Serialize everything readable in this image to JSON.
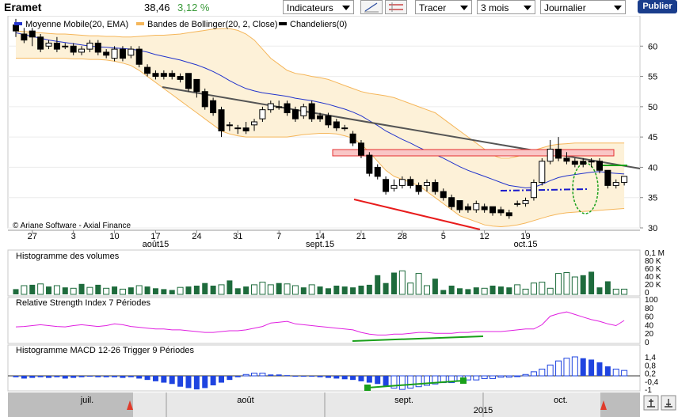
{
  "header": {
    "title": "Eramet",
    "price": "38,46",
    "change": "3,12 %",
    "indicators_label": "Indicateurs",
    "draw_label": "Tracer",
    "period_label": "3 mois",
    "interval_label": "Journalier",
    "publish_label": "Publier"
  },
  "legend": {
    "ema": "Moyenne Mobile(20, EMA)",
    "bollinger": "Bandes de Bollinger(20, 2, Close)",
    "candles": "Chandeliers(0)"
  },
  "colors": {
    "up": "#ffffff",
    "down": "#000000",
    "volume_up": "#1e6b3c",
    "ema": "#2233cc",
    "bollinger": "#f5b65a",
    "rsi": "#e020e0",
    "macd": "#1f44e0",
    "trend_red": "#e81c1c",
    "trend_green": "#1aa01a",
    "resistance_fill": "#f9c6c6"
  },
  "credit": "© Ariane Software - Axial Finance",
  "panels": {
    "volume_title": "Histogramme des volumes",
    "rsi_title": "Relative Strength Index 7 Périodes",
    "macd_title": "Histogramme MACD 12-26   Trigger 9 Périodes"
  },
  "x_ticks": [
    "27",
    "3",
    "10",
    "17",
    "24",
    "31",
    "7",
    "14",
    "21",
    "28",
    "5",
    "12",
    "19"
  ],
  "month_labels": [
    "août15",
    "sept.15",
    "oct.15"
  ],
  "nav": {
    "months": [
      "juil.",
      "août",
      "sept.",
      "oct."
    ],
    "year": "2015"
  },
  "chart_data": [
    {
      "type": "candlestick",
      "title": "Eramet",
      "ylim": [
        30,
        65
      ],
      "yticks": [
        30,
        35,
        40,
        45,
        50,
        55,
        60
      ],
      "candles": [
        [
          63.5,
          62.5,
          64.5,
          61.5
        ],
        [
          62.0,
          61.0,
          63.0,
          60.5
        ],
        [
          62.5,
          61.5,
          63.0,
          60.0
        ],
        [
          61.5,
          59.5,
          62.0,
          59.0
        ],
        [
          60.0,
          60.5,
          61.0,
          59.5
        ],
        [
          60.5,
          59.5,
          61.5,
          59.0
        ],
        [
          60.0,
          60.0,
          60.5,
          59.5
        ],
        [
          60.0,
          59.0,
          60.5,
          58.5
        ],
        [
          59.0,
          59.5,
          60.0,
          58.5
        ],
        [
          59.5,
          60.5,
          61.0,
          59.0
        ],
        [
          60.5,
          59.0,
          61.0,
          58.5
        ],
        [
          59.0,
          58.5,
          59.5,
          58.0
        ],
        [
          58.0,
          59.5,
          60.0,
          57.5
        ],
        [
          59.5,
          58.0,
          60.0,
          57.5
        ],
        [
          58.5,
          59.5,
          60.0,
          58.0
        ],
        [
          59.5,
          57.0,
          60.0,
          56.5
        ],
        [
          56.5,
          55.5,
          57.0,
          55.0
        ],
        [
          55.5,
          55.0,
          56.0,
          54.5
        ],
        [
          55.5,
          55.0,
          56.0,
          54.5
        ],
        [
          55.5,
          55.0,
          56.0,
          54.5
        ],
        [
          55.0,
          54.5,
          55.5,
          54.0
        ],
        [
          55.5,
          53.0,
          55.5,
          52.5
        ],
        [
          54.5,
          52.5,
          54.5,
          51.5
        ],
        [
          52.5,
          50.0,
          53.0,
          49.5
        ],
        [
          51.0,
          49.0,
          51.5,
          48.5
        ],
        [
          49.5,
          46.0,
          50.0,
          45.0
        ],
        [
          47.0,
          47.0,
          47.5,
          46.0
        ],
        [
          46.5,
          46.5,
          47.0,
          45.5
        ],
        [
          46.5,
          46.0,
          47.5,
          45.5
        ],
        [
          47.0,
          47.5,
          48.0,
          46.0
        ],
        [
          48.0,
          49.5,
          50.0,
          47.5
        ],
        [
          49.5,
          50.5,
          51.0,
          49.0
        ],
        [
          50.0,
          50.0,
          51.0,
          49.5
        ],
        [
          50.5,
          49.0,
          51.0,
          48.5
        ],
        [
          49.5,
          48.0,
          50.0,
          47.5
        ],
        [
          48.5,
          50.0,
          50.5,
          48.0
        ],
        [
          50.5,
          48.0,
          51.0,
          47.5
        ],
        [
          48.5,
          48.0,
          49.0,
          47.5
        ],
        [
          48.5,
          47.0,
          49.0,
          46.5
        ],
        [
          47.5,
          46.5,
          48.0,
          46.0
        ],
        [
          46.5,
          46.5,
          47.0,
          46.0
        ],
        [
          45.5,
          44.0,
          46.0,
          43.5
        ],
        [
          44.0,
          42.0,
          44.5,
          41.5
        ],
        [
          42.0,
          39.0,
          42.5,
          38.5
        ],
        [
          40.0,
          38.5,
          40.5,
          38.0
        ],
        [
          38.0,
          36.0,
          38.5,
          35.5
        ],
        [
          36.5,
          37.0,
          38.0,
          36.0
        ],
        [
          37.0,
          38.0,
          38.5,
          36.5
        ],
        [
          38.0,
          37.0,
          38.5,
          36.5
        ],
        [
          37.0,
          36.0,
          37.5,
          35.5
        ],
        [
          37.0,
          37.5,
          38.0,
          36.0
        ],
        [
          37.5,
          36.0,
          38.0,
          35.5
        ],
        [
          36.0,
          35.0,
          36.5,
          34.5
        ],
        [
          35.0,
          33.5,
          35.5,
          33.0
        ],
        [
          34.5,
          33.0,
          34.5,
          32.5
        ],
        [
          33.5,
          33.0,
          34.0,
          32.5
        ],
        [
          33.0,
          34.0,
          34.5,
          32.5
        ],
        [
          33.5,
          33.0,
          34.0,
          32.5
        ],
        [
          33.5,
          32.5,
          33.5,
          32.0
        ],
        [
          33.0,
          32.5,
          33.5,
          32.0
        ],
        [
          32.5,
          32.0,
          33.0,
          31.5
        ],
        [
          34.0,
          34.0,
          34.5,
          33.5
        ],
        [
          34.0,
          34.5,
          35.0,
          33.5
        ],
        [
          35.0,
          37.5,
          38.0,
          34.5
        ],
        [
          37.5,
          41.0,
          41.5,
          37.0
        ],
        [
          41.0,
          43.0,
          44.5,
          40.5
        ],
        [
          43.0,
          41.5,
          45.0,
          41.0
        ],
        [
          41.5,
          41.0,
          42.5,
          40.5
        ],
        [
          41.0,
          40.5,
          41.5,
          40.0
        ],
        [
          41.0,
          40.5,
          41.5,
          40.0
        ],
        [
          41.0,
          41.0,
          41.5,
          40.0
        ],
        [
          41.0,
          39.5,
          41.5,
          39.0
        ],
        [
          39.5,
          37.0,
          39.5,
          36.5
        ],
        [
          37.0,
          37.5,
          38.0,
          36.5
        ],
        [
          37.5,
          38.5,
          38.5,
          37.0
        ]
      ],
      "ema": [
        62.2,
        61.9,
        61.6,
        61.3,
        61.0,
        60.8,
        60.6,
        60.4,
        60.2,
        60.0,
        59.9,
        59.8,
        59.7,
        59.6,
        59.5,
        59.3,
        59.0,
        58.6,
        58.3,
        58.0,
        57.7,
        57.3,
        56.9,
        56.4,
        55.8,
        55.1,
        54.3,
        53.6,
        53.0,
        52.6,
        52.3,
        52.1,
        51.9,
        51.7,
        51.4,
        51.2,
        51.0,
        50.7,
        50.4,
        50.0,
        49.6,
        49.1,
        48.5,
        47.7,
        46.9,
        46.0,
        45.3,
        44.6,
        44.0,
        43.3,
        42.7,
        42.1,
        41.5,
        40.8,
        40.1,
        39.5,
        39.0,
        38.5,
        38.0,
        37.5,
        37.0,
        36.8,
        36.6,
        36.7,
        37.2,
        37.8,
        38.3,
        38.6,
        38.8,
        39.0,
        39.2,
        39.3,
        39.1,
        39.0,
        38.9
      ],
      "boll_upper": [
        62.5,
        62.4,
        62.3,
        62.2,
        62.1,
        62.0,
        62.0,
        61.9,
        61.8,
        61.7,
        61.7,
        61.6,
        61.6,
        61.5,
        61.5,
        61.6,
        61.7,
        61.8,
        61.8,
        61.9,
        62.0,
        62.2,
        62.4,
        62.6,
        62.8,
        62.9,
        62.9,
        62.6,
        62.0,
        61.0,
        59.5,
        58.0,
        57.0,
        56.0,
        55.5,
        55.3,
        55.0,
        54.8,
        54.5,
        54.0,
        53.5,
        53.0,
        52.5,
        52.2,
        52.0,
        51.8,
        51.5,
        51.0,
        50.5,
        50.0,
        49.5,
        49.0,
        48.0,
        47.0,
        46.0,
        45.0,
        44.0,
        43.0,
        42.0,
        41.5,
        41.5,
        41.8,
        42.2,
        42.8,
        43.2,
        43.6,
        43.8,
        43.9,
        44.0,
        44.0,
        44.0,
        44.0,
        44.0,
        44.0,
        44.0
      ],
      "boll_lower": [
        58.0,
        58.0,
        58.0,
        58.0,
        58.0,
        58.0,
        58.0,
        57.9,
        57.9,
        57.8,
        57.8,
        57.7,
        57.5,
        57.2,
        56.8,
        56.0,
        55.0,
        54.0,
        53.0,
        52.0,
        51.0,
        50.0,
        49.0,
        48.0,
        47.0,
        46.0,
        45.5,
        45.2,
        45.0,
        45.0,
        45.0,
        45.0,
        45.0,
        45.0,
        45.2,
        45.4,
        45.5,
        45.6,
        45.6,
        45.5,
        45.2,
        44.8,
        43.8,
        42.5,
        41.0,
        39.5,
        38.5,
        38.0,
        37.5,
        37.0,
        36.0,
        35.0,
        34.0,
        33.0,
        32.0,
        31.5,
        31.0,
        30.5,
        30.3,
        30.2,
        30.3,
        30.5,
        30.8,
        31.2,
        31.6,
        32.0,
        32.3,
        32.5,
        32.6,
        32.7,
        32.8,
        32.9,
        33.0,
        33.1,
        33.2
      ]
    },
    {
      "type": "bar",
      "title": "Histogramme des volumes",
      "ylim": [
        0,
        100000
      ],
      "ytick_labels": [
        "0,1 M",
        "80 K",
        "60 K",
        "40 K",
        "20 K",
        "0"
      ],
      "values": [
        12,
        20,
        22,
        24,
        18,
        20,
        16,
        14,
        24,
        16,
        22,
        14,
        18,
        12,
        16,
        20,
        18,
        14,
        12,
        10,
        16,
        18,
        20,
        26,
        20,
        22,
        32,
        14,
        18,
        22,
        28,
        22,
        26,
        24,
        20,
        16,
        22,
        18,
        14,
        20,
        18,
        16,
        20,
        22,
        44,
        26,
        50,
        54,
        26,
        48,
        20,
        36,
        10,
        20,
        14,
        12,
        16,
        14,
        20,
        18,
        16,
        22,
        12,
        26,
        28,
        14,
        48,
        50,
        40,
        44,
        52,
        16,
        30,
        12,
        12
      ],
      "up": [
        0,
        1,
        0,
        1,
        0,
        1,
        0,
        1,
        0,
        1,
        0,
        1,
        0,
        1,
        0,
        1,
        0,
        0,
        0,
        0,
        1,
        0,
        0,
        0,
        0,
        1,
        0,
        0,
        0,
        1,
        1,
        1,
        0,
        1,
        1,
        0,
        1,
        0,
        0,
        0,
        0,
        0,
        0,
        0,
        0,
        0,
        0,
        1,
        1,
        1,
        1,
        0,
        0,
        0,
        0,
        0,
        0,
        1,
        0,
        0,
        0,
        1,
        1,
        1,
        1,
        1,
        1,
        1,
        1,
        0,
        0,
        0,
        0,
        1,
        1
      ]
    },
    {
      "type": "line",
      "title": "Relative Strength Index 7 Périodes",
      "ylim": [
        0,
        100
      ],
      "yticks": [
        0,
        20,
        40,
        60,
        80,
        100
      ],
      "values": [
        35,
        36,
        38,
        40,
        38,
        36,
        35,
        38,
        40,
        38,
        36,
        38,
        42,
        40,
        36,
        34,
        32,
        30,
        30,
        28,
        28,
        26,
        24,
        22,
        22,
        24,
        26,
        26,
        28,
        32,
        36,
        44,
        46,
        48,
        42,
        40,
        38,
        36,
        34,
        32,
        30,
        28,
        22,
        18,
        16,
        16,
        18,
        18,
        20,
        22,
        22,
        20,
        20,
        20,
        22,
        22,
        24,
        24,
        24,
        24,
        26,
        28,
        30,
        30,
        40,
        60,
        66,
        70,
        64,
        58,
        52,
        48,
        42,
        38,
        50
      ]
    },
    {
      "type": "bar",
      "title": "Histogramme MACD 12-26   Trigger 9 Périodes",
      "ylim": [
        -1.2,
        1.6
      ],
      "yticks": [
        1.4,
        0.8,
        0.2,
        -0.4,
        -1
      ],
      "ytick_labels": [
        "1,4",
        "0,8",
        "0,2",
        "-0,4",
        "-1"
      ],
      "values": [
        -0.1,
        -0.2,
        -0.15,
        -0.1,
        -0.15,
        -0.1,
        -0.2,
        -0.15,
        -0.1,
        -0.05,
        -0.1,
        -0.1,
        -0.1,
        -0.15,
        -0.1,
        -0.2,
        -0.3,
        -0.4,
        -0.5,
        -0.6,
        -0.8,
        -0.9,
        -1.0,
        -0.9,
        -0.7,
        -0.5,
        -0.3,
        -0.1,
        0.1,
        0.2,
        0.2,
        0.1,
        0.1,
        0.05,
        0,
        -0.05,
        -0.05,
        -0.1,
        -0.15,
        -0.2,
        -0.25,
        -0.3,
        -0.4,
        -0.5,
        -0.6,
        -0.8,
        -0.9,
        -1.0,
        -0.9,
        -0.8,
        -0.7,
        -0.6,
        -0.5,
        -0.5,
        -0.4,
        -0.3,
        -0.3,
        -0.2,
        -0.2,
        -0.1,
        -0.1,
        -0.05,
        0.1,
        0.3,
        0.5,
        0.8,
        1.1,
        1.3,
        1.4,
        1.3,
        1.2,
        1.0,
        0.7,
        0.5,
        0.4
      ],
      "up": [
        0,
        0,
        0,
        0,
        0,
        0,
        0,
        0,
        0,
        0,
        0,
        0,
        0,
        0,
        0,
        0,
        0,
        0,
        0,
        0,
        0,
        0,
        0,
        0,
        0,
        0,
        0,
        0,
        1,
        1,
        1,
        0,
        0,
        0,
        0,
        0,
        0,
        0,
        0,
        0,
        0,
        0,
        0,
        0,
        0,
        0,
        1,
        1,
        1,
        1,
        1,
        1,
        1,
        1,
        1,
        1,
        1,
        1,
        1,
        1,
        1,
        1,
        1,
        1,
        1,
        1,
        1,
        1,
        1,
        0,
        0,
        0,
        0,
        1,
        1
      ]
    }
  ]
}
